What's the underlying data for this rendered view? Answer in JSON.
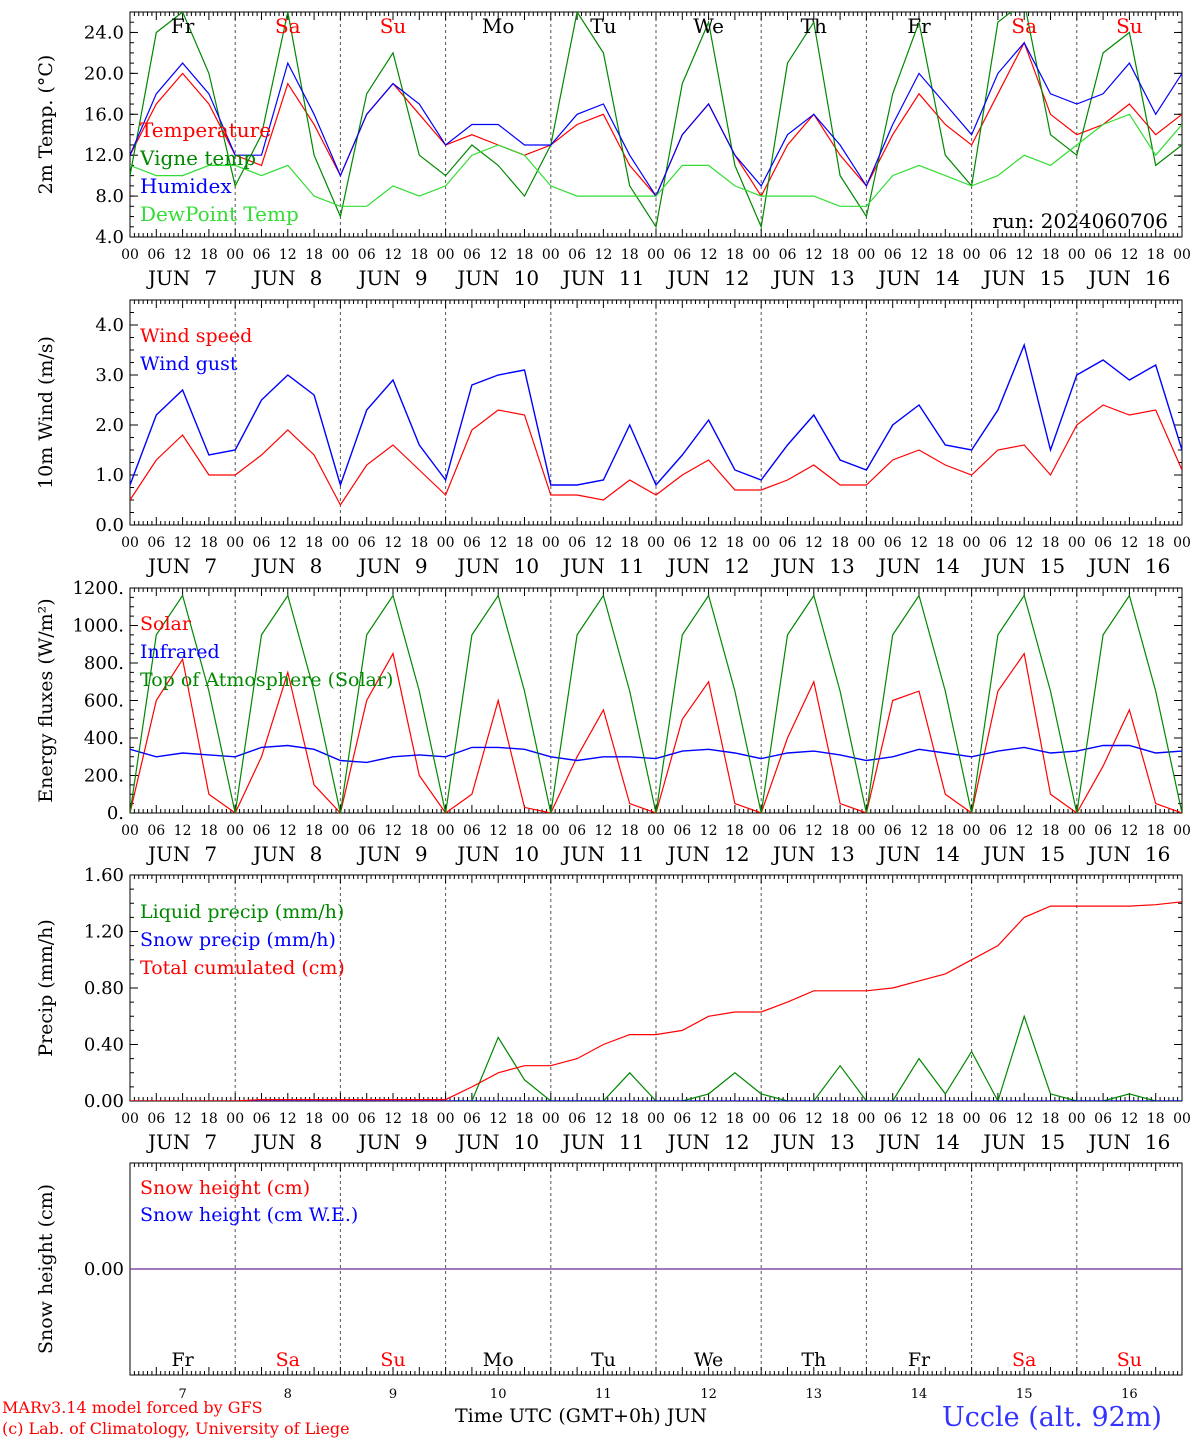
{
  "run_label": "run: 2024060706",
  "footer": {
    "model": "MARv3.14 model forced by GFS",
    "copyright": "(c) Lab. of Climatology, University of Liege",
    "xlabel": "Time UTC (GMT+0h)",
    "month": "JUN",
    "station": "Uccle (alt. 92m)"
  },
  "days": [
    {
      "weekday": "Fr",
      "date": "7",
      "weekend": false
    },
    {
      "weekday": "Sa",
      "date": "8",
      "weekend": true
    },
    {
      "weekday": "Su",
      "date": "9",
      "weekend": true
    },
    {
      "weekday": "Mo",
      "date": "10",
      "weekend": false
    },
    {
      "weekday": "Tu",
      "date": "11",
      "weekend": false
    },
    {
      "weekday": "We",
      "date": "12",
      "weekend": false
    },
    {
      "weekday": "Th",
      "date": "13",
      "weekend": false
    },
    {
      "weekday": "Fr",
      "date": "14",
      "weekend": false
    },
    {
      "weekday": "Sa",
      "date": "15",
      "weekend": true
    },
    {
      "weekday": "Su",
      "date": "16",
      "weekend": true
    }
  ],
  "hour_ticks": [
    "00",
    "06",
    "12",
    "18"
  ],
  "colors": {
    "red": "#ff0000",
    "green": "#008800",
    "blue": "#0000ff",
    "lightgreen": "#33dd33",
    "purple": "#8040a0",
    "weekend": "#ff0000",
    "station": "#3333ff"
  },
  "chart_data": [
    {
      "type": "line",
      "ylabel": "2m Temp. (°C)",
      "ylim": [
        4,
        26
      ],
      "yticks": [
        "4.0",
        "8.0",
        "12.0",
        "16.0",
        "20.0",
        "24.0"
      ],
      "ytick_values": [
        4,
        8,
        12,
        16,
        20,
        24
      ],
      "x": [
        0,
        6,
        12,
        18,
        24,
        30,
        36,
        42,
        48,
        54,
        60,
        66,
        72,
        78,
        84,
        90,
        96,
        102,
        108,
        114,
        120,
        126,
        132,
        138,
        144,
        150,
        156,
        162,
        168,
        174,
        180,
        186,
        192,
        198,
        204,
        210,
        216,
        222,
        228,
        234,
        240
      ],
      "xunit": "hours after 2024-06-07 00 UTC",
      "series": [
        {
          "name": "Temperature",
          "color": "#ff0000",
          "values": [
            12,
            17,
            20,
            17,
            12,
            11,
            19,
            15,
            10,
            16,
            19,
            16,
            13,
            14,
            13,
            12,
            13,
            15,
            16,
            11,
            8,
            14,
            17,
            12,
            8,
            13,
            16,
            12,
            9,
            14,
            18,
            15,
            13,
            18,
            23,
            16,
            14,
            15,
            17,
            14,
            16
          ]
        },
        {
          "name": "Vigne temp",
          "color": "#008800",
          "values": [
            10,
            24,
            26,
            20,
            9,
            14,
            26,
            12,
            6,
            18,
            22,
            12,
            10,
            13,
            11,
            8,
            13,
            26,
            22,
            9,
            5,
            19,
            25,
            11,
            5,
            21,
            25,
            10,
            6,
            18,
            25,
            12,
            9,
            25,
            27,
            14,
            12,
            22,
            24,
            11,
            13
          ]
        },
        {
          "name": "Humidex",
          "color": "#0000ff",
          "values": [
            12,
            18,
            21,
            18,
            12,
            12,
            21,
            16,
            10,
            16,
            19,
            17,
            13,
            15,
            15,
            13,
            13,
            16,
            17,
            12,
            8,
            14,
            17,
            12,
            9,
            14,
            16,
            13,
            9,
            15,
            20,
            17,
            14,
            20,
            23,
            18,
            17,
            18,
            21,
            16,
            20
          ]
        },
        {
          "name": "DewPoint Temp",
          "color": "#33dd33",
          "values": [
            11,
            10,
            10,
            11,
            11,
            10,
            11,
            8,
            7,
            7,
            9,
            8,
            9,
            12,
            13,
            12,
            9,
            8,
            8,
            8,
            8,
            11,
            11,
            9,
            8,
            8,
            8,
            7,
            7,
            10,
            11,
            10,
            9,
            10,
            12,
            11,
            13,
            15,
            16,
            12,
            15
          ]
        }
      ]
    },
    {
      "type": "line",
      "ylabel": "10m Wind (m/s)",
      "ylim": [
        0,
        4.5
      ],
      "yticks": [
        "0.0",
        "1.0",
        "2.0",
        "3.0",
        "4.0"
      ],
      "ytick_values": [
        0,
        1,
        2,
        3,
        4
      ],
      "x": [
        0,
        6,
        12,
        18,
        24,
        30,
        36,
        42,
        48,
        54,
        60,
        66,
        72,
        78,
        84,
        90,
        96,
        102,
        108,
        114,
        120,
        126,
        132,
        138,
        144,
        150,
        156,
        162,
        168,
        174,
        180,
        186,
        192,
        198,
        204,
        210,
        216,
        222,
        228,
        234,
        240
      ],
      "xunit": "hours after 2024-06-07 00 UTC",
      "series": [
        {
          "name": "Wind speed",
          "color": "#ff0000",
          "values": [
            0.5,
            1.3,
            1.8,
            1.0,
            1.0,
            1.4,
            1.9,
            1.4,
            0.4,
            1.2,
            1.6,
            1.1,
            0.6,
            1.9,
            2.3,
            2.2,
            0.6,
            0.6,
            0.5,
            0.9,
            0.6,
            1.0,
            1.3,
            0.7,
            0.7,
            0.9,
            1.2,
            0.8,
            0.8,
            1.3,
            1.5,
            1.2,
            1.0,
            1.5,
            1.6,
            1.0,
            2.0,
            2.4,
            2.2,
            2.3,
            1.1
          ]
        },
        {
          "name": "Wind gust",
          "color": "#0000ff",
          "values": [
            0.8,
            2.2,
            2.7,
            1.4,
            1.5,
            2.5,
            3.0,
            2.6,
            0.8,
            2.3,
            2.9,
            1.6,
            0.9,
            2.8,
            3.0,
            3.1,
            0.8,
            0.8,
            0.9,
            2.0,
            0.8,
            1.4,
            2.1,
            1.1,
            0.9,
            1.6,
            2.2,
            1.3,
            1.1,
            2.0,
            2.4,
            1.6,
            1.5,
            2.3,
            3.6,
            1.5,
            3.0,
            3.3,
            2.9,
            3.2,
            1.5
          ]
        }
      ]
    },
    {
      "type": "line",
      "ylabel": "Energy fluxes (W/m²)",
      "ylim": [
        0,
        1200
      ],
      "yticks": [
        "0.",
        "200.",
        "400.",
        "600.",
        "800.",
        "1000.",
        "1200."
      ],
      "ytick_values": [
        0,
        200,
        400,
        600,
        800,
        1000,
        1200
      ],
      "x": [
        0,
        6,
        12,
        18,
        24,
        30,
        36,
        42,
        48,
        54,
        60,
        66,
        72,
        78,
        84,
        90,
        96,
        102,
        108,
        114,
        120,
        126,
        132,
        138,
        144,
        150,
        156,
        162,
        168,
        174,
        180,
        186,
        192,
        198,
        204,
        210,
        216,
        222,
        228,
        234,
        240
      ],
      "xunit": "hours after 2024-06-07 00 UTC",
      "series": [
        {
          "name": "Solar",
          "color": "#ff0000",
          "values": [
            0,
            600,
            820,
            100,
            0,
            300,
            750,
            150,
            0,
            600,
            850,
            200,
            0,
            100,
            600,
            30,
            0,
            300,
            550,
            50,
            0,
            500,
            700,
            50,
            0,
            400,
            700,
            50,
            0,
            600,
            650,
            100,
            0,
            650,
            850,
            100,
            0,
            250,
            550,
            50,
            0
          ]
        },
        {
          "name": "Infrared",
          "color": "#0000ff",
          "values": [
            340,
            300,
            320,
            310,
            300,
            350,
            360,
            340,
            280,
            270,
            300,
            310,
            300,
            350,
            350,
            340,
            300,
            280,
            300,
            300,
            290,
            330,
            340,
            320,
            290,
            320,
            330,
            310,
            280,
            300,
            340,
            320,
            300,
            330,
            350,
            320,
            330,
            360,
            360,
            320,
            330
          ]
        },
        {
          "name": "Top of Atmosphere (Solar)",
          "color": "#008800",
          "values": [
            0,
            950,
            1160,
            650,
            0,
            950,
            1160,
            650,
            0,
            950,
            1160,
            650,
            0,
            950,
            1160,
            650,
            0,
            950,
            1160,
            650,
            0,
            950,
            1160,
            650,
            0,
            950,
            1160,
            650,
            0,
            950,
            1160,
            650,
            0,
            950,
            1160,
            650,
            0,
            950,
            1160,
            650,
            0
          ]
        }
      ]
    },
    {
      "type": "line",
      "ylabel": "Precip (mm/h)",
      "ylim": [
        0,
        1.6
      ],
      "yticks": [
        "0.00",
        "0.40",
        "0.80",
        "1.20",
        "1.60"
      ],
      "ytick_values": [
        0,
        0.4,
        0.8,
        1.2,
        1.6
      ],
      "x": [
        0,
        6,
        12,
        18,
        24,
        30,
        36,
        42,
        48,
        54,
        60,
        66,
        72,
        78,
        84,
        90,
        96,
        102,
        108,
        114,
        120,
        126,
        132,
        138,
        144,
        150,
        156,
        162,
        168,
        174,
        180,
        186,
        192,
        198,
        204,
        210,
        216,
        222,
        228,
        234,
        240
      ],
      "xunit": "hours after 2024-06-07 00 UTC",
      "series": [
        {
          "name": "Liquid precip (mm/h)",
          "color": "#008800",
          "values": [
            0,
            0,
            0,
            0,
            0,
            0,
            0,
            0,
            0,
            0,
            0,
            0,
            0,
            0,
            0.45,
            0.15,
            0,
            0,
            0,
            0.2,
            0,
            0,
            0.05,
            0.2,
            0.05,
            0,
            0,
            0.25,
            0,
            0,
            0.3,
            0.05,
            0.35,
            0,
            0.6,
            0.05,
            0,
            0,
            0.05,
            0,
            0
          ]
        },
        {
          "name": "Snow precip (mm/h)",
          "color": "#0000ff",
          "values": [
            0,
            0,
            0,
            0,
            0,
            0,
            0,
            0,
            0,
            0,
            0,
            0,
            0,
            0,
            0,
            0,
            0,
            0,
            0,
            0,
            0,
            0,
            0,
            0,
            0,
            0,
            0,
            0,
            0,
            0,
            0,
            0,
            0,
            0,
            0,
            0,
            0,
            0,
            0,
            0,
            0
          ]
        },
        {
          "name": "Total cumulated (cm)",
          "color": "#ff0000",
          "values": [
            0,
            0,
            0,
            0,
            0,
            0.01,
            0.01,
            0.01,
            0.01,
            0.01,
            0.01,
            0.01,
            0.01,
            0.1,
            0.2,
            0.25,
            0.25,
            0.3,
            0.4,
            0.47,
            0.47,
            0.5,
            0.6,
            0.63,
            0.63,
            0.7,
            0.78,
            0.78,
            0.78,
            0.8,
            0.85,
            0.9,
            1.0,
            1.1,
            1.3,
            1.38,
            1.38,
            1.38,
            1.38,
            1.39,
            1.41
          ]
        }
      ]
    },
    {
      "type": "line",
      "ylabel": "Snow height (cm)",
      "yticks": [
        "0.00"
      ],
      "ytick_values": [
        0
      ],
      "x": [
        0,
        240
      ],
      "xunit": "hours after 2024-06-07 00 UTC",
      "series": [
        {
          "name": "Snow height (cm)",
          "color": "#ff0000",
          "values": [
            0,
            0
          ]
        },
        {
          "name": "Snow height (cm W.E.)",
          "color": "#0000ff",
          "values": [
            0,
            0
          ]
        }
      ]
    }
  ]
}
